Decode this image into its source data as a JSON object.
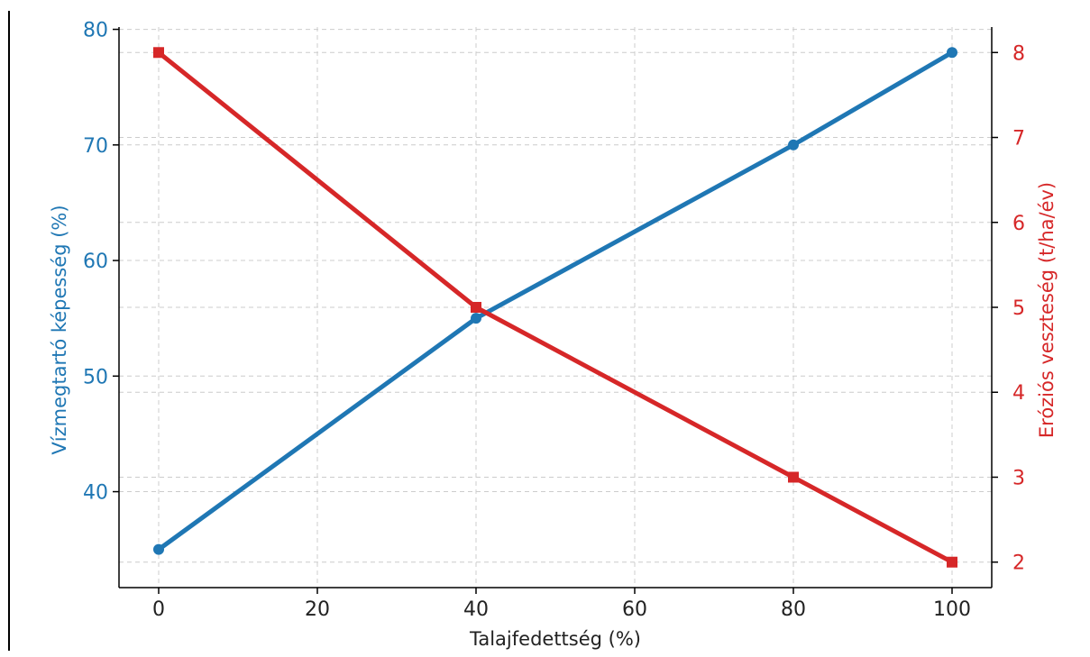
{
  "chart_data": {
    "type": "line",
    "title": "",
    "xlabel": "Talajfedettség (%)",
    "ylabel_left": "Vízmegtartó képesség (%)",
    "ylabel_right": "Eróziós veszteség (t/ha/év)",
    "x": [
      0,
      40,
      80,
      100
    ],
    "xlim": [
      -5,
      105
    ],
    "xticks": [
      "0",
      "20",
      "40",
      "60",
      "80",
      "100"
    ],
    "ylim_left": [
      31.7,
      80.2
    ],
    "yticks_left": [
      "40",
      "50",
      "60",
      "70",
      "80"
    ],
    "ylim_right": [
      1.7,
      8.3
    ],
    "yticks_right": [
      "2",
      "3",
      "4",
      "5",
      "6",
      "7",
      "8"
    ],
    "grid": true,
    "series": [
      {
        "axis": "left",
        "values": [
          35,
          55,
          70,
          78
        ],
        "color": "#1f77b4",
        "marker": "circle"
      },
      {
        "axis": "right",
        "values": [
          8,
          5,
          3,
          2
        ],
        "color": "#d62728",
        "marker": "square"
      }
    ],
    "colors": {
      "left_axis": "#1f77b4",
      "right_axis": "#d62728",
      "axis_line": "#000000",
      "grid": "#cccccc"
    }
  }
}
